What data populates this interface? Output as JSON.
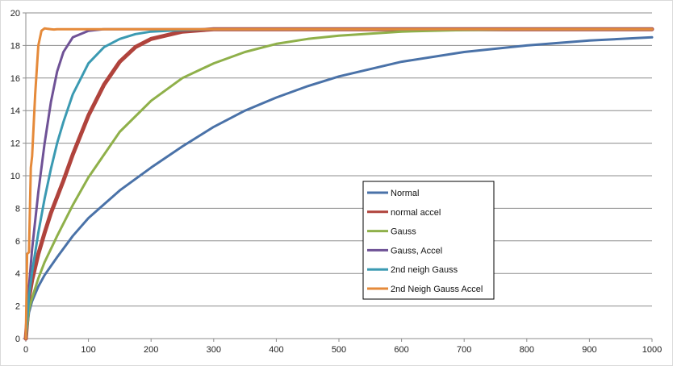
{
  "chart_data": {
    "type": "line",
    "title": "",
    "xlabel": "",
    "ylabel": "",
    "xlim": [
      0,
      1000
    ],
    "ylim": [
      0,
      20
    ],
    "x_ticks": [
      0,
      100,
      200,
      300,
      400,
      500,
      600,
      700,
      800,
      900,
      1000
    ],
    "y_ticks": [
      0,
      2,
      4,
      6,
      8,
      10,
      12,
      14,
      16,
      18,
      20
    ],
    "grid": "horizontal",
    "legend_position": "lower-center-right",
    "series": [
      {
        "name": "Normal",
        "color": "#4a72a8",
        "x": [
          0,
          5,
          10,
          20,
          30,
          50,
          75,
          100,
          150,
          200,
          250,
          300,
          350,
          400,
          450,
          500,
          600,
          700,
          800,
          900,
          1000
        ],
        "y": [
          0,
          1.6,
          2.3,
          3.2,
          3.9,
          5.0,
          6.3,
          7.4,
          9.1,
          10.5,
          11.8,
          13.0,
          14.0,
          14.8,
          15.5,
          16.1,
          17.0,
          17.6,
          18.0,
          18.3,
          18.5
        ]
      },
      {
        "name": "normal accel",
        "color": "#b0433c",
        "x": [
          0,
          5,
          10,
          20,
          30,
          40,
          50,
          60,
          75,
          100,
          125,
          150,
          175,
          200,
          250,
          300,
          400,
          1000
        ],
        "y": [
          0,
          2.5,
          3.6,
          5.2,
          6.5,
          7.7,
          8.7,
          9.7,
          11.3,
          13.7,
          15.6,
          17.0,
          17.9,
          18.4,
          18.85,
          19.0,
          19.0,
          19.0
        ]
      },
      {
        "name": "Gauss",
        "color": "#8fb04a",
        "x": [
          0,
          5,
          10,
          20,
          30,
          50,
          75,
          100,
          150,
          200,
          250,
          300,
          350,
          400,
          450,
          500,
          600,
          700,
          800,
          900,
          1000
        ],
        "y": [
          0,
          1.8,
          2.5,
          3.7,
          4.7,
          6.3,
          8.2,
          9.9,
          12.7,
          14.6,
          16.0,
          16.9,
          17.6,
          18.1,
          18.4,
          18.6,
          18.85,
          18.95,
          19.0,
          19.0,
          19.0
        ]
      },
      {
        "name": "Gauss, Accel",
        "color": "#6f5296",
        "x": [
          0,
          5,
          10,
          20,
          30,
          40,
          50,
          60,
          75,
          100,
          125,
          150,
          200,
          1000
        ],
        "y": [
          0,
          3.2,
          5.5,
          9.0,
          12.0,
          14.5,
          16.4,
          17.6,
          18.5,
          18.9,
          19.0,
          19.0,
          19.0,
          19.0
        ]
      },
      {
        "name": "2nd neigh Gauss",
        "color": "#3b9ab2",
        "x": [
          0,
          5,
          10,
          20,
          30,
          40,
          50,
          60,
          75,
          100,
          125,
          150,
          175,
          200,
          250,
          300,
          1000
        ],
        "y": [
          0,
          2.6,
          4.1,
          6.5,
          8.6,
          10.4,
          12.0,
          13.3,
          15.0,
          16.9,
          17.9,
          18.4,
          18.7,
          18.85,
          18.95,
          19.0,
          19.0
        ]
      },
      {
        "name": "2nd Neigh Gauss Accel",
        "color": "#e58a3a",
        "x": [
          0,
          2,
          5,
          8,
          10,
          15,
          20,
          25,
          30,
          35,
          40,
          45,
          50,
          60,
          1000
        ],
        "y": [
          0,
          5.2,
          5.3,
          10.5,
          11.2,
          15.0,
          18.0,
          18.9,
          19.05,
          19.02,
          19.0,
          18.98,
          19.0,
          19.0,
          19.0
        ]
      }
    ]
  }
}
